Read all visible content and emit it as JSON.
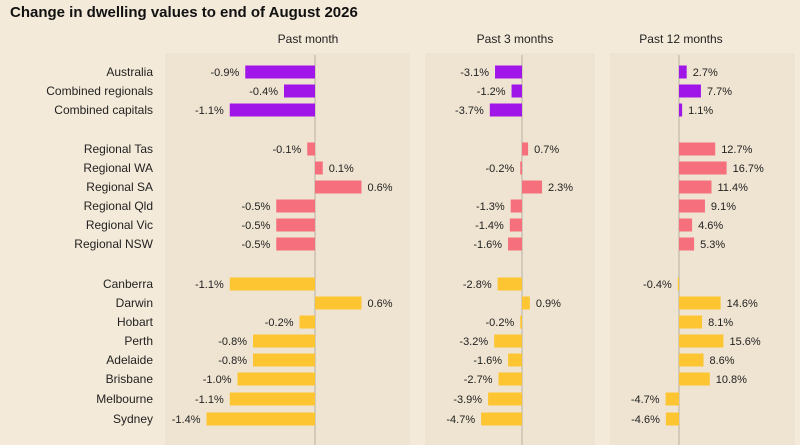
{
  "title": "Change in dwelling values to end of August 2026",
  "colors": {
    "background": "#f4ead9",
    "panel": "#efe4d1",
    "national": "#a016e8",
    "regional": "#f56f7c",
    "capitals": "#fdc531",
    "axis": "#b9b0a3"
  },
  "chart_data": {
    "type": "bar",
    "orientation": "horizontal",
    "title": "Change in dwelling values to end of August 2026",
    "unit": "%",
    "categories": [
      "Australia",
      "Combined regionals",
      "Combined capitals",
      "Regional Tas",
      "Regional WA",
      "Regional SA",
      "Regional Qld",
      "Regional Vic",
      "Regional NSW",
      "Canberra",
      "Darwin",
      "Hobart",
      "Perth",
      "Adelaide",
      "Brisbane",
      "Melbourne",
      "Sydney"
    ],
    "groups": [
      {
        "color_key": "national",
        "count": 3
      },
      {
        "color_key": "regional",
        "count": 6
      },
      {
        "color_key": "capitals",
        "count": 8
      }
    ],
    "series": [
      {
        "name": "Past month",
        "values": [
          -0.9,
          -0.4,
          -1.1,
          -0.1,
          0.1,
          0.6,
          -0.5,
          -0.5,
          -0.5,
          -1.1,
          0.6,
          -0.2,
          -0.8,
          -0.8,
          -1.0,
          -1.1,
          -1.4
        ]
      },
      {
        "name": "Past 3 months",
        "values": [
          -3.1,
          -1.2,
          -3.7,
          0.7,
          -0.2,
          2.3,
          -1.3,
          -1.4,
          -1.6,
          -2.8,
          0.9,
          -0.2,
          -3.2,
          -1.6,
          -2.7,
          -3.9,
          -4.7
        ]
      },
      {
        "name": "Past 12 months",
        "values": [
          2.7,
          7.7,
          1.1,
          12.7,
          16.7,
          11.4,
          9.1,
          4.6,
          5.3,
          -0.4,
          14.6,
          8.1,
          15.6,
          8.6,
          10.8,
          -4.7,
          -4.6
        ]
      }
    ],
    "labels": [
      [
        "-0.9%",
        "-0.4%",
        "-1.1%",
        "-0.1%",
        "0.1%",
        "0.6%",
        "-0.5%",
        "-0.5%",
        "-0.5%",
        "-1.1%",
        "0.6%",
        "-0.2%",
        "-0.8%",
        "-0.8%",
        "-1.0%",
        "-1.1%",
        "-1.4%"
      ],
      [
        "-3.1%",
        "-1.2%",
        "-3.7%",
        "0.7%",
        "-0.2%",
        "2.3%",
        "-1.3%",
        "-1.4%",
        "-1.6%",
        "-2.8%",
        "0.9%",
        "-0.2%",
        "-3.2%",
        "-1.6%",
        "-2.7%",
        "-3.9%",
        "-4.7%"
      ],
      [
        "2.7%",
        "7.7%",
        "1.1%",
        "12.7%",
        "16.7%",
        "11.4%",
        "9.1%",
        "4.6%",
        "5.3%",
        "-0.4%",
        "14.6%",
        "8.1%",
        "15.6%",
        "8.6%",
        "10.8%",
        "-4.7%",
        "-4.6%"
      ]
    ]
  }
}
